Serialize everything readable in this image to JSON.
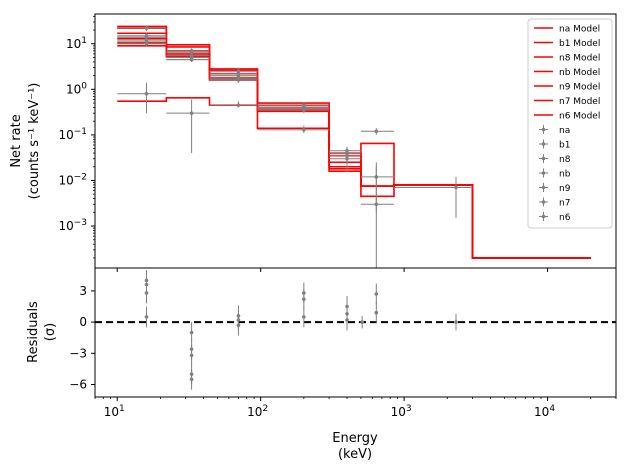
{
  "chart_data": [
    {
      "type": "line",
      "panel": "top",
      "xscale": "log",
      "yscale": "log",
      "xlim": [
        7,
        30000
      ],
      "ylim": [
        0.00012,
        45
      ],
      "ylabel_line1": "Net rate",
      "ylabel_line2": "(counts s⁻¹ keV⁻¹)",
      "xticks": [
        10,
        100,
        1000,
        10000
      ],
      "xtick_labels": [
        {
          "base": "10",
          "exp": "1"
        },
        {
          "base": "10",
          "exp": "2"
        },
        {
          "base": "10",
          "exp": "3"
        },
        {
          "base": "10",
          "exp": "4"
        }
      ],
      "yticks": [
        0.001,
        0.01,
        0.1,
        1,
        10
      ],
      "ytick_labels": [
        {
          "base": "10",
          "exp": "−3"
        },
        {
          "base": "10",
          "exp": "−2"
        },
        {
          "base": "10",
          "exp": "−1"
        },
        {
          "base": "10",
          "exp": "0"
        },
        {
          "base": "10",
          "exp": "1"
        }
      ],
      "bin_edges": [
        10,
        22,
        44,
        95,
        300,
        500,
        850,
        3000,
        20000
      ],
      "model_color": "#ff0000",
      "data_color": "#808080",
      "legend_position": "upper right",
      "models": [
        {
          "name": "na Model",
          "values": [
            22,
            8.5,
            2.6,
            0.45,
            0.035,
            0.0075,
            0.008,
            0.0002
          ]
        },
        {
          "name": "b1 Model",
          "values": [
            0.55,
            0.65,
            0.45,
            0.4,
            0.035,
            0.0075,
            0.008,
            0.0002
          ]
        },
        {
          "name": "n8 Model",
          "values": [
            9,
            5.2,
            1.6,
            0.35,
            0.018,
            0.0075,
            0.008,
            0.0002
          ]
        },
        {
          "name": "nb Model",
          "values": [
            13,
            7,
            2.2,
            0.14,
            0.016,
            0.065,
            0.008,
            0.0002
          ]
        },
        {
          "name": "n9 Model",
          "values": [
            17,
            9.5,
            2.8,
            0.5,
            0.04,
            0.0075,
            0.008,
            0.0002
          ]
        },
        {
          "name": "n7 Model",
          "values": [
            10.5,
            6,
            1.8,
            0.38,
            0.025,
            0.0045,
            0.008,
            0.0002
          ]
        },
        {
          "name": "n6 Model",
          "values": [
            24,
            5.5,
            1.7,
            0.33,
            0.02,
            0.0075,
            0.008,
            0.0002
          ]
        }
      ],
      "data": [
        {
          "name": "na",
          "points": [
            {
              "x": 16,
              "y": 22,
              "yerr": [
                19,
                25
              ]
            },
            {
              "x": 33,
              "y": 7,
              "yerr": [
                6,
                8
              ]
            },
            {
              "x": 70,
              "y": 2.5,
              "yerr": [
                2,
                3
              ]
            },
            {
              "x": 200,
              "y": 0.4,
              "yerr": [
                0.33,
                0.5
              ]
            },
            {
              "x": 400,
              "y": 0.04,
              "yerr": [
                0.03,
                0.05
              ]
            }
          ]
        },
        {
          "name": "b1",
          "points": [
            {
              "x": 16,
              "y": 0.8,
              "yerr": [
                0.3,
                1.4
              ]
            },
            {
              "x": 33,
              "y": 0.3,
              "yerr": [
                0.04,
                0.6
              ]
            },
            {
              "x": 70,
              "y": 0.45,
              "yerr": [
                0.4,
                0.55
              ]
            },
            {
              "x": 200,
              "y": 0.13,
              "yerr": [
                0.11,
                0.16
              ]
            },
            {
              "x": 640,
              "y": 0.12,
              "yerr": [
                0.1,
                0.14
              ]
            }
          ]
        },
        {
          "name": "n8",
          "points": [
            {
              "x": 16,
              "y": 10,
              "yerr": [
                9,
                11
              ]
            },
            {
              "x": 33,
              "y": 4.5,
              "yerr": [
                4,
                5
              ]
            },
            {
              "x": 70,
              "y": 1.8,
              "yerr": [
                1.6,
                2
              ]
            },
            {
              "x": 200,
              "y": 0.45,
              "yerr": [
                0.4,
                0.5
              ]
            },
            {
              "x": 400,
              "y": 0.03,
              "yerr": [
                0.022,
                0.04
              ]
            }
          ]
        },
        {
          "name": "nb",
          "points": [
            {
              "x": 16,
              "y": 12,
              "yerr": [
                11,
                13
              ]
            },
            {
              "x": 33,
              "y": 5,
              "yerr": [
                4.5,
                5.5
              ]
            },
            {
              "x": 70,
              "y": 2.2,
              "yerr": [
                2,
                2.5
              ]
            },
            {
              "x": 200,
              "y": 0.4,
              "yerr": [
                0.35,
                0.45
              ]
            },
            {
              "x": 640,
              "y": 0.003,
              "yerr": [
                0.00012,
                0.02
              ]
            }
          ]
        },
        {
          "name": "n9",
          "points": [
            {
              "x": 16,
              "y": 15,
              "yerr": [
                13,
                17
              ]
            },
            {
              "x": 33,
              "y": 6.5,
              "yerr": [
                6,
                7
              ]
            },
            {
              "x": 70,
              "y": 2,
              "yerr": [
                1.8,
                2.2
              ]
            },
            {
              "x": 200,
              "y": 0.45,
              "yerr": [
                0.4,
                0.5
              ]
            },
            {
              "x": 400,
              "y": 0.045,
              "yerr": [
                0.035,
                0.055
              ]
            }
          ]
        },
        {
          "name": "n7",
          "points": [
            {
              "x": 16,
              "y": 11,
              "yerr": [
                10,
                12
              ]
            },
            {
              "x": 33,
              "y": 5.5,
              "yerr": [
                5,
                6
              ]
            },
            {
              "x": 70,
              "y": 1.6,
              "yerr": [
                1.4,
                1.8
              ]
            },
            {
              "x": 200,
              "y": 0.38,
              "yerr": [
                0.33,
                0.43
              ]
            },
            {
              "x": 640,
              "y": 0.012,
              "yerr": [
                0.002,
                0.025
              ]
            }
          ]
        },
        {
          "name": "n6",
          "points": [
            {
              "x": 16,
              "y": 14,
              "yerr": [
                12,
                16
              ]
            },
            {
              "x": 33,
              "y": 4.5,
              "yerr": [
                4,
                5
              ]
            },
            {
              "x": 70,
              "y": 1.7,
              "yerr": [
                1.5,
                1.9
              ]
            },
            {
              "x": 200,
              "y": 0.35,
              "yerr": [
                0.3,
                0.4
              ]
            },
            {
              "x": 400,
              "y": 0.035,
              "yerr": [
                0.015,
                0.05
              ]
            },
            {
              "x": 2300,
              "y": 0.007,
              "yerr": [
                0.0015,
                0.012
              ]
            }
          ]
        }
      ]
    },
    {
      "type": "scatter",
      "panel": "bottom",
      "xscale": "log",
      "xlim": [
        7,
        30000
      ],
      "ylim": [
        -7.2,
        5.2
      ],
      "xlabel_line1": "Energy",
      "xlabel_line2": "(keV)",
      "ylabel_line1": "Residuals",
      "ylabel_line2": "(σ)",
      "yticks": [
        -6,
        -3,
        0,
        3
      ],
      "ytick_labels": [
        "−6",
        "−3",
        "0",
        "3"
      ],
      "zero_line": {
        "y": 0,
        "style": "dashed",
        "color": "#000000"
      },
      "points": [
        {
          "x": 16,
          "y": 4,
          "err": 1
        },
        {
          "x": 16,
          "y": 3.6,
          "err": 1
        },
        {
          "x": 16,
          "y": 2.8,
          "err": 1
        },
        {
          "x": 16,
          "y": 0.5,
          "err": 1
        },
        {
          "x": 33,
          "y": -1,
          "err": 1
        },
        {
          "x": 33,
          "y": -2.6,
          "err": 1
        },
        {
          "x": 33,
          "y": -3.2,
          "err": 1
        },
        {
          "x": 33,
          "y": -5,
          "err": 1
        },
        {
          "x": 33,
          "y": -5.5,
          "err": 1
        },
        {
          "x": 70,
          "y": 0.6,
          "err": 1
        },
        {
          "x": 70,
          "y": 0.2,
          "err": 1
        },
        {
          "x": 70,
          "y": -0.3,
          "err": 1
        },
        {
          "x": 200,
          "y": 2.8,
          "err": 1
        },
        {
          "x": 200,
          "y": 2.2,
          "err": 1
        },
        {
          "x": 200,
          "y": 0.5,
          "err": 1
        },
        {
          "x": 400,
          "y": 1.5,
          "err": 1
        },
        {
          "x": 400,
          "y": 0.8,
          "err": 1
        },
        {
          "x": 400,
          "y": 0.2,
          "err": 1
        },
        {
          "x": 510,
          "y": 0,
          "err": 0.6
        },
        {
          "x": 640,
          "y": 2.7,
          "err": 1
        },
        {
          "x": 640,
          "y": 0.9,
          "err": 1
        },
        {
          "x": 2300,
          "y": 0,
          "err": 0.8
        }
      ]
    }
  ]
}
